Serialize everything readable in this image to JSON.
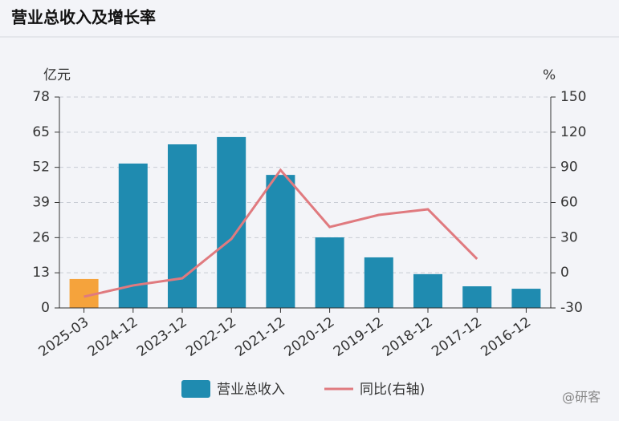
{
  "chart_data": {
    "type": "bar",
    "title": "营业总收入及增长率",
    "y_label": "亿元",
    "y2_label": "%",
    "categories": [
      "2025-03",
      "2024-12",
      "2023-12",
      "2022-12",
      "2021-12",
      "2020-12",
      "2019-12",
      "2018-12",
      "2017-12",
      "2016-12"
    ],
    "series": [
      {
        "name": "营业总收入",
        "type": "bar",
        "color": "#1f8bb0",
        "point_colors": [
          "#f5a33c",
          "#1f8bb0",
          "#1f8bb0",
          "#1f8bb0",
          "#1f8bb0",
          "#1f8bb0",
          "#1f8bb0",
          "#1f8bb0",
          "#1f8bb0",
          "#1f8bb0"
        ],
        "values": [
          10.7,
          53.4,
          60.5,
          63.2,
          49.2,
          26.1,
          18.7,
          12.5,
          8.0,
          7.1
        ]
      },
      {
        "name": "同比(右轴)",
        "type": "line",
        "axis": "y2",
        "color": "#e07a7f",
        "values": [
          -20.4,
          -10.8,
          -4.7,
          28.9,
          87.7,
          39.1,
          49.4,
          54.2,
          11.8,
          null
        ]
      }
    ],
    "ylim": [
      0,
      78
    ],
    "yticks": [
      0,
      13,
      26,
      39,
      52,
      65,
      78
    ],
    "y2lim": [
      -30,
      150
    ],
    "y2ticks": [
      -30,
      0,
      30,
      60,
      90,
      120,
      150
    ],
    "grid": true
  },
  "watermark": "@研客"
}
